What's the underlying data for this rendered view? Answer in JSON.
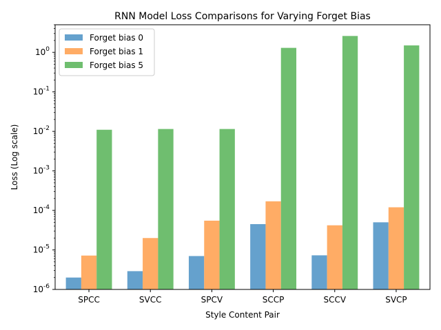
{
  "chart_data": {
    "type": "bar",
    "title": "RNN Model Loss Comparisons for Varying Forget Bias",
    "xlabel": "Style Content Pair",
    "ylabel": "Loss (Log scale)",
    "yscale": "log",
    "ylim": [
      1e-06,
      5
    ],
    "yticks": [
      {
        "base": "10",
        "exp": "-6",
        "value": 1e-06
      },
      {
        "base": "10",
        "exp": "-5",
        "value": 1e-05
      },
      {
        "base": "10",
        "exp": "-4",
        "value": 0.0001
      },
      {
        "base": "10",
        "exp": "-3",
        "value": 0.001
      },
      {
        "base": "10",
        "exp": "-2",
        "value": 0.01
      },
      {
        "base": "10",
        "exp": "-1",
        "value": 0.1
      },
      {
        "base": "10",
        "exp": "0",
        "value": 1
      }
    ],
    "categories": [
      "SPCC",
      "SVCC",
      "SPCV",
      "SCCP",
      "SCCV",
      "SVCP"
    ],
    "series": [
      {
        "name": "Forget bias 0",
        "color": "#4a90c4",
        "values": [
          2e-06,
          2.9e-06,
          7e-06,
          4.5e-05,
          7.3e-06,
          5e-05
        ]
      },
      {
        "name": "Forget bias 1",
        "color": "#ff9e4a",
        "values": [
          7.2e-06,
          2e-05,
          5.5e-05,
          0.00017,
          4.2e-05,
          0.00012
        ]
      },
      {
        "name": "Forget bias 5",
        "color": "#56b356",
        "values": [
          0.011,
          0.0115,
          0.0115,
          1.3,
          2.6,
          1.5
        ]
      }
    ],
    "legend": "top-left",
    "grid": false
  }
}
